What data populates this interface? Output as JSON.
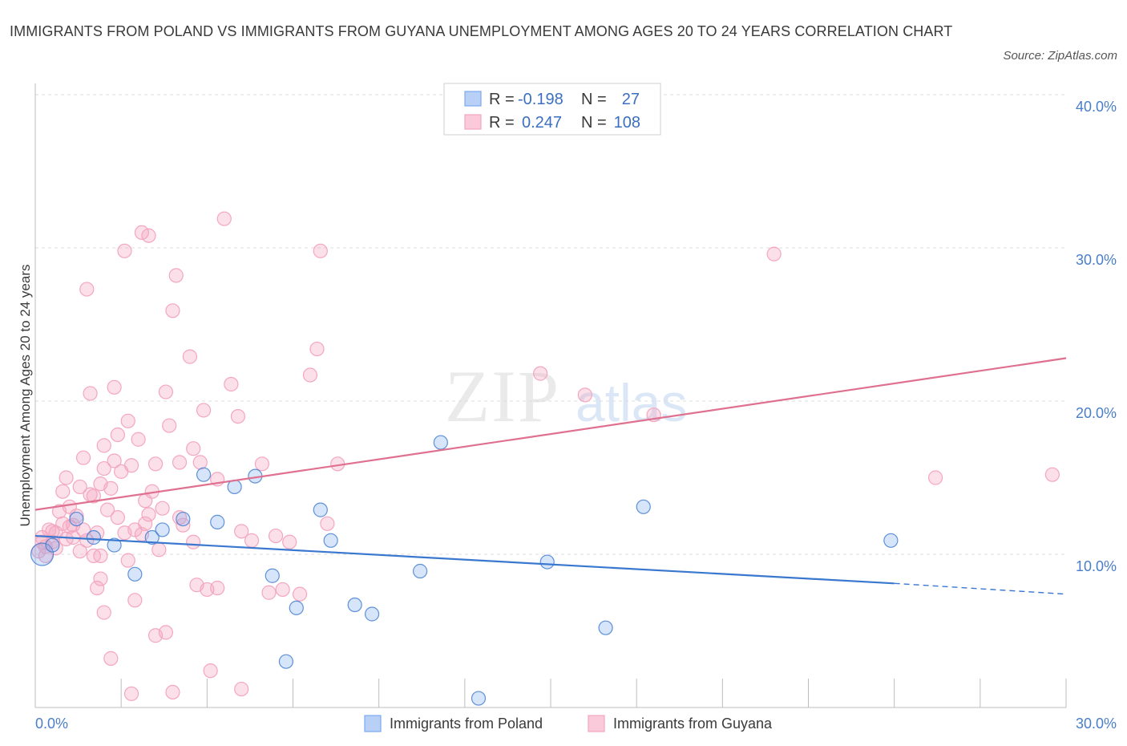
{
  "title": "IMMIGRANTS FROM POLAND VS IMMIGRANTS FROM GUYANA UNEMPLOYMENT AMONG AGES 20 TO 24 YEARS CORRELATION CHART",
  "source": "Source: ZipAtlas.com",
  "colors": {
    "poland": "#7aaaf0",
    "poland_line": "#3a78d0",
    "guyana": "#f4a6c0",
    "guyana_line": "#e0708f",
    "axis_text": "#4a7ec8"
  },
  "stats": {
    "r_label": "R =",
    "n_label": "N =",
    "poland": {
      "r": "-0.198",
      "n": "27"
    },
    "guyana": {
      "r": "0.247",
      "n": "108"
    }
  },
  "chart_data": {
    "type": "scatter",
    "title": "IMMIGRANTS FROM POLAND VS IMMIGRANTS FROM GUYANA UNEMPLOYMENT AMONG AGES 20 TO 24 YEARS CORRELATION CHART",
    "xlabel": "",
    "ylabel": "Unemployment Among Ages 20 to 24 years",
    "xlim": [
      0,
      30
    ],
    "ylim": [
      0,
      40
    ],
    "x_tick_labels": [
      "0.0%",
      "30.0%"
    ],
    "y_ticks": [
      10,
      20,
      30,
      40
    ],
    "y_tick_labels": [
      "10.0%",
      "20.0%",
      "30.0%",
      "40.0%"
    ],
    "legend": [
      "Immigrants from Poland",
      "Immigrants from Guyana"
    ],
    "series": [
      {
        "name": "Immigrants from Poland",
        "r": -0.198,
        "n": 27,
        "trend": {
          "x": [
            0,
            25,
            30
          ],
          "y": [
            11.2,
            8.1,
            7.4
          ],
          "solid_until": 25
        },
        "points": [
          [
            0.2,
            10.0
          ],
          [
            1.2,
            12.3
          ],
          [
            1.7,
            11.1
          ],
          [
            2.3,
            10.6
          ],
          [
            2.9,
            8.7
          ],
          [
            3.4,
            11.1
          ],
          [
            3.7,
            11.6
          ],
          [
            4.3,
            12.3
          ],
          [
            4.9,
            15.2
          ],
          [
            5.3,
            12.1
          ],
          [
            5.8,
            14.4
          ],
          [
            6.4,
            15.1
          ],
          [
            6.9,
            8.6
          ],
          [
            7.3,
            3.0
          ],
          [
            7.6,
            6.5
          ],
          [
            8.3,
            12.9
          ],
          [
            8.6,
            10.9
          ],
          [
            9.3,
            6.7
          ],
          [
            9.8,
            6.1
          ],
          [
            11.2,
            8.9
          ],
          [
            11.8,
            17.3
          ],
          [
            12.9,
            0.6
          ],
          [
            14.9,
            9.5
          ],
          [
            16.6,
            5.2
          ],
          [
            17.7,
            13.1
          ],
          [
            24.9,
            10.9
          ],
          [
            0.5,
            10.6
          ]
        ]
      },
      {
        "name": "Immigrants from Guyana",
        "r": 0.247,
        "n": 108,
        "trend": {
          "x": [
            0,
            30
          ],
          "y": [
            12.9,
            22.8
          ]
        },
        "points": [
          [
            0.1,
            10.2
          ],
          [
            0.2,
            11.1
          ],
          [
            0.3,
            10.5
          ],
          [
            0.4,
            11.6
          ],
          [
            0.5,
            10.8
          ],
          [
            0.6,
            11.4
          ],
          [
            0.7,
            12.8
          ],
          [
            0.8,
            14.1
          ],
          [
            0.9,
            15.0
          ],
          [
            1.0,
            13.1
          ],
          [
            1.1,
            11.9
          ],
          [
            1.2,
            12.5
          ],
          [
            1.3,
            14.4
          ],
          [
            1.4,
            16.3
          ],
          [
            1.5,
            10.9
          ],
          [
            1.6,
            20.5
          ],
          [
            1.7,
            13.8
          ],
          [
            1.8,
            11.4
          ],
          [
            1.9,
            9.9
          ],
          [
            2.0,
            17.1
          ],
          [
            2.1,
            12.9
          ],
          [
            2.2,
            14.3
          ],
          [
            2.3,
            20.9
          ],
          [
            2.4,
            17.8
          ],
          [
            2.5,
            15.4
          ],
          [
            2.6,
            29.8
          ],
          [
            2.7,
            18.7
          ],
          [
            2.8,
            15.8
          ],
          [
            2.9,
            11.6
          ],
          [
            3.0,
            17.5
          ],
          [
            3.1,
            31.0
          ],
          [
            3.2,
            12.0
          ],
          [
            3.3,
            30.8
          ],
          [
            3.4,
            14.1
          ],
          [
            3.5,
            15.9
          ],
          [
            3.6,
            10.3
          ],
          [
            3.7,
            13.0
          ],
          [
            3.8,
            20.6
          ],
          [
            3.9,
            18.4
          ],
          [
            4.0,
            25.9
          ],
          [
            4.1,
            28.2
          ],
          [
            4.2,
            16.0
          ],
          [
            4.3,
            11.9
          ],
          [
            4.5,
            22.9
          ],
          [
            4.6,
            16.9
          ],
          [
            4.7,
            8.0
          ],
          [
            4.8,
            16.0
          ],
          [
            4.9,
            19.4
          ],
          [
            5.1,
            2.4
          ],
          [
            5.3,
            7.8
          ],
          [
            5.5,
            31.9
          ],
          [
            5.7,
            21.1
          ],
          [
            5.9,
            19.0
          ],
          [
            6.0,
            11.5
          ],
          [
            6.3,
            10.9
          ],
          [
            6.6,
            15.9
          ],
          [
            6.8,
            7.5
          ],
          [
            7.0,
            11.2
          ],
          [
            7.2,
            7.7
          ],
          [
            7.4,
            10.8
          ],
          [
            7.7,
            7.4
          ],
          [
            8.0,
            21.7
          ],
          [
            8.2,
            23.4
          ],
          [
            8.5,
            12.0
          ],
          [
            8.8,
            15.9
          ],
          [
            8.3,
            29.8
          ],
          [
            0.5,
            11.5
          ],
          [
            1.0,
            11.8
          ],
          [
            1.3,
            10.2
          ],
          [
            1.7,
            9.9
          ],
          [
            1.8,
            7.8
          ],
          [
            1.9,
            8.4
          ],
          [
            2.0,
            6.2
          ],
          [
            2.2,
            3.2
          ],
          [
            2.4,
            12.4
          ],
          [
            2.6,
            11.4
          ],
          [
            2.7,
            9.6
          ],
          [
            2.9,
            7.0
          ],
          [
            3.1,
            11.3
          ],
          [
            3.3,
            12.6
          ],
          [
            3.5,
            4.7
          ],
          [
            3.8,
            4.9
          ],
          [
            4.0,
            1.0
          ],
          [
            4.2,
            12.4
          ],
          [
            4.6,
            10.8
          ],
          [
            5.0,
            7.7
          ],
          [
            5.3,
            14.9
          ],
          [
            6.0,
            1.2
          ],
          [
            1.5,
            27.3
          ],
          [
            2.0,
            15.6
          ],
          [
            0.3,
            9.9
          ],
          [
            0.6,
            10.4
          ],
          [
            0.8,
            12.0
          ],
          [
            1.1,
            11.1
          ],
          [
            1.4,
            11.6
          ],
          [
            1.6,
            13.9
          ],
          [
            2.3,
            16.1
          ],
          [
            2.8,
            0.9
          ],
          [
            3.2,
            13.5
          ],
          [
            0.9,
            11.0
          ],
          [
            14.7,
            21.8
          ],
          [
            16.0,
            20.4
          ],
          [
            18.0,
            19.1
          ],
          [
            21.5,
            29.6
          ],
          [
            26.2,
            15.0
          ],
          [
            29.6,
            15.2
          ],
          [
            0.2,
            10.8
          ],
          [
            1.9,
            14.6
          ]
        ]
      }
    ]
  }
}
